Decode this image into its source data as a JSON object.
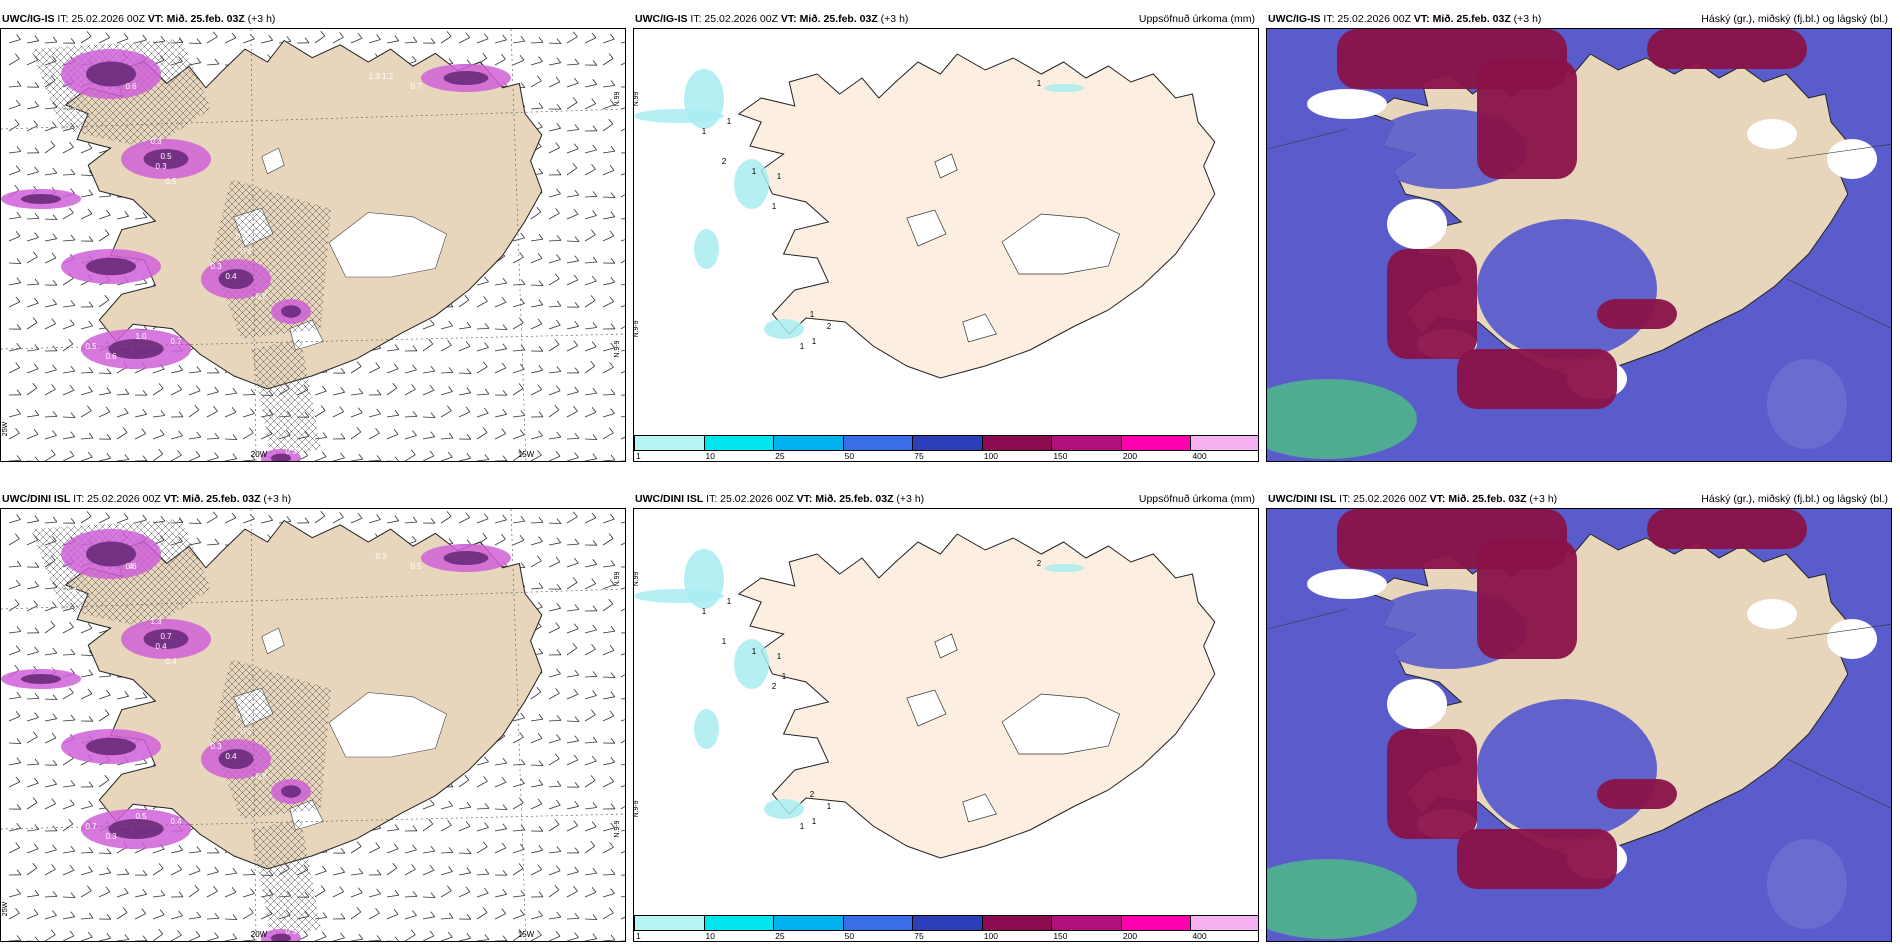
{
  "rows": [
    {
      "model": "UWC/IG-IS",
      "panels": [
        {
          "kind": "wind",
          "model": "UWC/IG-IS",
          "it": " IT: 25.02.2026 00Z ",
          "vt_label": "VT:",
          "vt": " Mið. 25.feb. 03Z",
          "lead": " (+3 h)",
          "lat_labels": [
            "N.99",
            "N.9-9"
          ],
          "lon_labels": [
            "20W",
            "15W"
          ],
          "edge_label": "25W",
          "values": [
            "0.6",
            "0.2",
            "0.3",
            "0.5",
            "0.3",
            "0.5",
            "0.6",
            "1.3 1.2",
            "0.7",
            "0.6",
            "0.4",
            "0.4",
            "0.2",
            "0.3",
            "1.0",
            "0.7",
            "0.6",
            "0.5",
            "0.3"
          ]
        },
        {
          "kind": "precip",
          "model": "UWC/IG-IS",
          "it": " IT: 25.02.2026 00Z ",
          "vt_label": "VT:",
          "vt": " Mið. 25.feb. 03Z",
          "lead": " (+3 h)",
          "right": "Uppsöfnuð úrkoma (mm)",
          "lat_labels": [
            "N.99",
            "N.9-9"
          ],
          "values": [
            "1",
            "1",
            "2",
            "1",
            "1",
            "1",
            "1",
            "1",
            "2",
            "1",
            "1"
          ]
        },
        {
          "kind": "cloud",
          "model": "UWC/IG-IS",
          "it": " IT: 25.02.2026 00Z ",
          "vt_label": "VT:",
          "vt": " Mið. 25.feb. 03Z",
          "lead": " (+3 h)",
          "right": "Háský (gr.), miðský (fj.bl.) og lágský (bl.)"
        }
      ]
    },
    {
      "model": "UWC/DINI ISL",
      "panels": [
        {
          "kind": "wind",
          "model": "UWC/DINI ISL",
          "it": " IT: 25.02.2026 00Z ",
          "vt_label": "VT:",
          "vt": " Mið. 25.feb. 03Z",
          "lead": " (+3 h)",
          "lat_labels": [
            "N.99",
            "N.9-9"
          ],
          "lon_labels": [
            "20W",
            "15W"
          ],
          "edge_label": "25W",
          "values": [
            "0.6",
            "0.5",
            "1.3",
            "0.7",
            "0.4",
            "0.4",
            "0.2",
            "0.3",
            "0.5",
            "0.8",
            "0.5",
            "0.4",
            "0.3",
            "0.3",
            "0.5",
            "0.4",
            "0.3",
            "0.7",
            "0.5",
            "4",
            "0.4"
          ]
        },
        {
          "kind": "precip",
          "model": "UWC/DINI ISL",
          "it": " IT: 25.02.2026 00Z ",
          "vt_label": "VT:",
          "vt": " Mið. 25.feb. 03Z",
          "lead": " (+3 h)",
          "right": "Uppsöfnuð úrkoma (mm)",
          "lat_labels": [
            "N.99",
            "N.9-9"
          ],
          "values": [
            "1",
            "1",
            "1",
            "1",
            "1",
            "2",
            "2",
            "2",
            "1",
            "1",
            "1",
            "1"
          ]
        },
        {
          "kind": "cloud",
          "model": "UWC/DINI ISL",
          "it": " IT: 25.02.2026 00Z ",
          "vt_label": "VT:",
          "vt": " Mið. 25.feb. 03Z",
          "lead": " (+3 h)",
          "right": "Háský (gr.), miðský (fj.bl.) og lágský (bl.)"
        }
      ]
    }
  ],
  "colorbar": {
    "colors": [
      "#b6f5f5",
      "#00e5ee",
      "#00b2ee",
      "#3a6ee8",
      "#2a3fb8",
      "#8b0a50",
      "#b0107a",
      "#ff00b0",
      "#f5b0f0"
    ],
    "ticks": [
      "1",
      "10",
      "25",
      "50",
      "75",
      "100",
      "150",
      "200",
      "400"
    ]
  },
  "colors": {
    "land": "#e7d5bc",
    "land_light": "#fcefe2",
    "ice": "#ffffff",
    "sea_white": "#ffffff",
    "magenta": "#d060d8",
    "purple": "#6a2a7a",
    "cloud_blue": "#5a5ccb",
    "cloud_dark": "#8a1248",
    "green": "#4fb88a",
    "cyan": "#a8ecf2"
  }
}
